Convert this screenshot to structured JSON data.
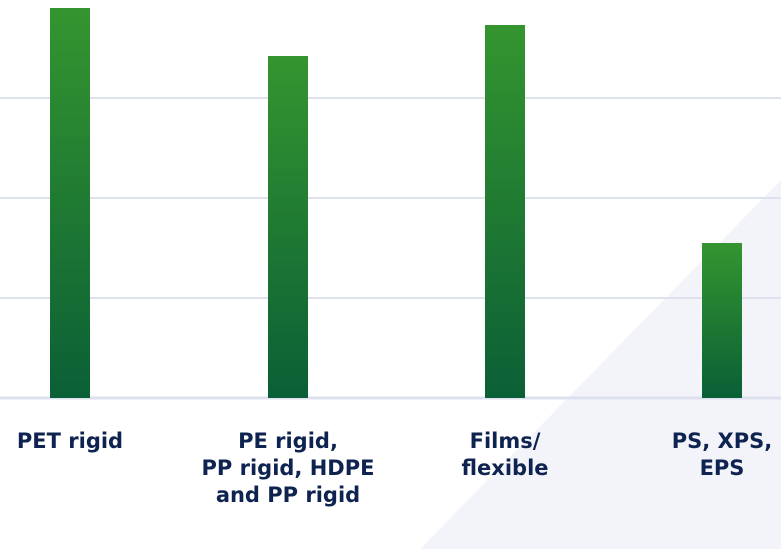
{
  "chart_data": {
    "type": "bar",
    "categories": [
      "PET rigid",
      "PE rigid,\nPP rigid, HDPE\nand PP rigid",
      "Films/\nflexible",
      "PS, XPS,\nEPS"
    ],
    "values": [
      3.9,
      3.42,
      3.73,
      1.55
    ],
    "ylim": [
      0,
      4
    ],
    "grid": true,
    "legend": "none",
    "title": "",
    "xlabel": "",
    "ylabel": ""
  },
  "colors": {
    "bar_top": "#34952f",
    "bar_bottom": "#0b5f36",
    "grid": "#dde1ee",
    "label": "#0f2350",
    "background_tint": "#f4f5fb"
  }
}
